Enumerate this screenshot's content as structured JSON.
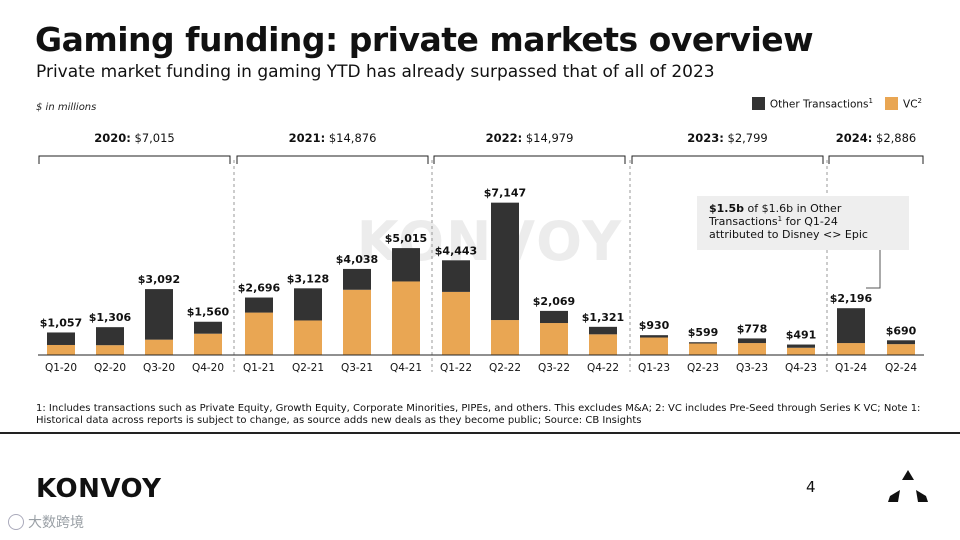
{
  "header": {
    "title": "Gaming funding: private markets overview",
    "subtitle": "Private market funding in gaming YTD has already surpassed that of all of 2023",
    "units": "$ in millions"
  },
  "legend": {
    "other": "Other Transactions",
    "other_sup": "1",
    "vc": "VC",
    "vc_sup": "2"
  },
  "colors": {
    "other": "#333333",
    "vc": "#E9A653",
    "divider": "#999999"
  },
  "chart_data": {
    "type": "bar",
    "stacked": true,
    "categories": [
      "Q1-20",
      "Q2-20",
      "Q3-20",
      "Q4-20",
      "Q1-21",
      "Q2-21",
      "Q3-21",
      "Q4-21",
      "Q1-22",
      "Q2-22",
      "Q3-22",
      "Q4-22",
      "Q1-23",
      "Q2-23",
      "Q3-23",
      "Q4-23",
      "Q1-24",
      "Q2-24"
    ],
    "totals": [
      1057,
      1306,
      3092,
      1560,
      2696,
      3128,
      4038,
      5015,
      4443,
      7147,
      2069,
      1321,
      930,
      599,
      778,
      491,
      2196,
      690
    ],
    "total_labels": [
      "$1,057",
      "$1,306",
      "$3,092",
      "$1,560",
      "$2,696",
      "$3,128",
      "$4,038",
      "$5,015",
      "$4,443",
      "$7,147",
      "$2,069",
      "$1,321",
      "$930",
      "$599",
      "$778",
      "$491",
      "$2,196",
      "$690"
    ],
    "series": [
      {
        "name": "VC",
        "values": [
          470,
          460,
          720,
          1000,
          1990,
          1620,
          3060,
          3450,
          2960,
          1640,
          1500,
          970,
          820,
          540,
          560,
          340,
          560,
          510
        ]
      },
      {
        "name": "Other Transactions",
        "values": [
          587,
          846,
          2372,
          560,
          706,
          1508,
          978,
          1565,
          1483,
          5507,
          569,
          351,
          110,
          59,
          218,
          151,
          1636,
          180
        ]
      }
    ],
    "ylim": [
      0,
      7600
    ],
    "years": [
      {
        "year": "2020:",
        "total": "$7,015",
        "start": 0,
        "end": 3
      },
      {
        "year": "2021:",
        "total": "$14,876",
        "start": 4,
        "end": 7
      },
      {
        "year": "2022:",
        "total": "$14,979",
        "start": 8,
        "end": 11
      },
      {
        "year": "2023:",
        "total": "$2,799",
        "start": 12,
        "end": 15
      },
      {
        "year": "2024:",
        "total": "$2,886",
        "start": 16,
        "end": 17
      }
    ],
    "annotation": {
      "bold": "$1.5b",
      "line1_rest": " of $1.6b in Other",
      "line2": "Transactions",
      "line2_sup": "1",
      "line2_rest": " for Q1-24",
      "line3": "attributed to Disney <> Epic"
    }
  },
  "footnote": "1: Includes transactions such as Private Equity, Growth Equity, Corporate Minorities, PIPEs, and others. This excludes M&A; 2: VC includes Pre-Seed through Series K VC; Note 1: Historical data across reports is subject to change, as source adds new deals as they become public; Source: CB Insights",
  "footer": {
    "logo": "KONVOY",
    "page": "4",
    "watermark": "大数跨境",
    "chart_watermark": "KONVOY"
  }
}
